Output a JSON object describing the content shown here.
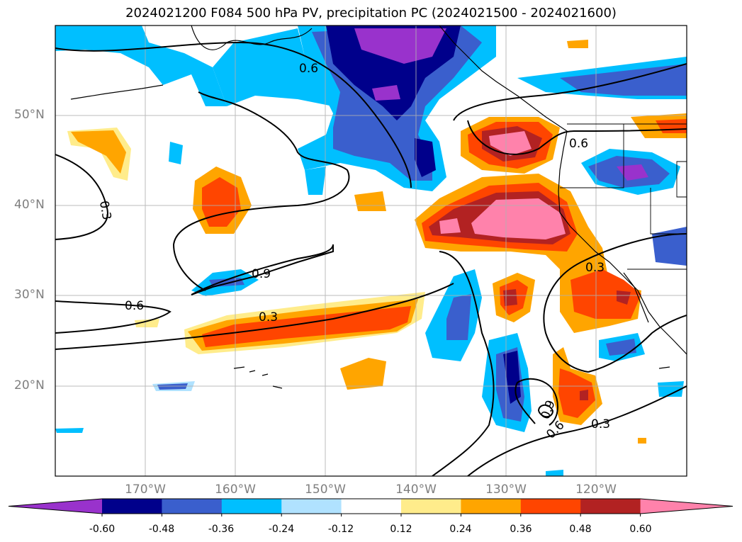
{
  "title": "2024021200 F084 500 hPa PV, precipitation PC (2024021500 - 2024021600)",
  "lat_labels": [
    "50°N",
    "40°N",
    "30°N",
    "20°N"
  ],
  "lon_labels": [
    "170°W",
    "160°W",
    "150°W",
    "140°W",
    "130°W",
    "120°W"
  ],
  "colorbar": {
    "colors": [
      "#9932cc",
      "#00008b",
      "#3a5fcd",
      "#00bfff",
      "#b0e2ff",
      "#ffffff",
      "#ffec8b",
      "#ffa500",
      "#ff4500",
      "#b22222",
      "#ff82ab"
    ],
    "tick_labels": [
      "-0.60",
      "-0.48",
      "-0.36",
      "-0.24",
      "-0.12",
      "0.12",
      "0.24",
      "0.36",
      "0.48",
      "0.60"
    ]
  },
  "contour_labels": [
    "0.6",
    "0.3",
    "0.9",
    "0.6",
    "0.3",
    "0.3",
    "0.6",
    "0.9",
    "0.6",
    "0.3"
  ]
}
